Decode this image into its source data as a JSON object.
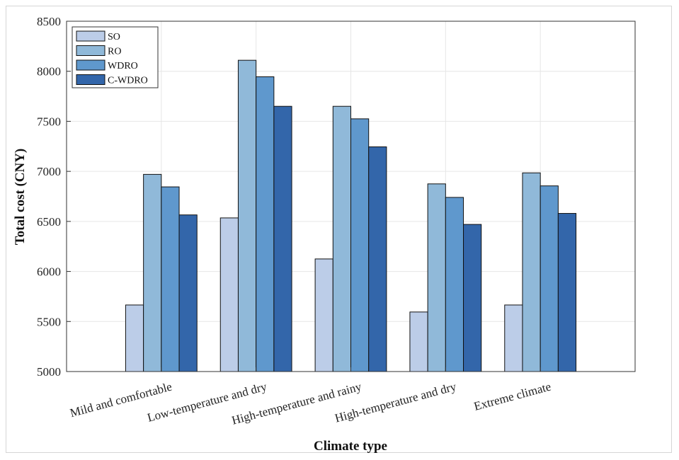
{
  "chart_data": {
    "type": "bar",
    "title": "",
    "xlabel": "Climate type",
    "ylabel": "Total cost (CNY)",
    "ylim": [
      5000,
      8500
    ],
    "yticks": [
      5000,
      5500,
      6000,
      6500,
      7000,
      7500,
      8000,
      8500
    ],
    "grid": true,
    "legend_position": "top-left",
    "categories": [
      "Mild and comfortable",
      "Low-temperature and dry",
      "High-temperature and rainy",
      "High-temperature and dry",
      "Extreme climate"
    ],
    "series": [
      {
        "name": "SO",
        "color": "#bccde8",
        "values": [
          5665,
          6535,
          6125,
          5595,
          5665
        ]
      },
      {
        "name": "RO",
        "color": "#90b9d9",
        "values": [
          6970,
          8110,
          7650,
          6875,
          6985
        ]
      },
      {
        "name": "WDRO",
        "color": "#5f98cd",
        "values": [
          6845,
          7945,
          7525,
          6740,
          6855
        ]
      },
      {
        "name": "C-WDRO",
        "color": "#3366aa",
        "values": [
          6565,
          7650,
          7245,
          6470,
          6580
        ]
      }
    ]
  }
}
